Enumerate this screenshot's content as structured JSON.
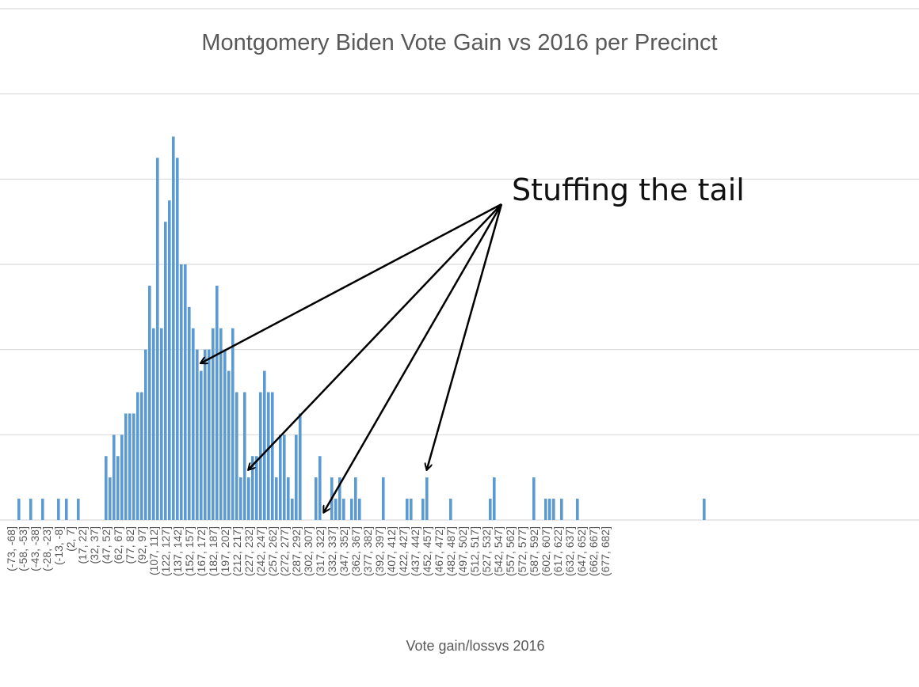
{
  "chart_data": {
    "type": "bar",
    "title": "Montgomery Biden Vote Gain vs 2016 per Precinct",
    "xlabel": "Vote gain/lossvs 2016",
    "ylabel": "",
    "ylim": [
      0,
      24
    ],
    "y_gridlines": [
      0,
      4,
      8,
      12,
      16,
      20,
      24
    ],
    "grid": true,
    "bar_color": "#5b9bd5",
    "bin_width": 5,
    "first_bin_start": -73,
    "tick_labels": [
      "(-73, -68]",
      "(-58, -53]",
      "(-43, -38]",
      "(-28, -23]",
      "(-13, -8]",
      "(2, 7]",
      "(17, 22]",
      "(32, 37]",
      "(47, 52]",
      "(62, 67]",
      "(77, 82]",
      "(92, 97]",
      "(107, 112]",
      "(122, 127]",
      "(137, 142]",
      "(152, 157]",
      "(167, 172]",
      "(182, 187]",
      "(197, 202]",
      "(212, 217]",
      "(227, 232]",
      "(242, 247]",
      "(257, 262]",
      "(272, 277]",
      "(287, 292]",
      "(302, 307]",
      "(317, 322]",
      "(332, 337]",
      "(347, 352]",
      "(362, 367]",
      "(377, 382]",
      "(392, 397]",
      "(407, 412]",
      "(422, 427]",
      "(437, 442]",
      "(452, 457]",
      "(467, 472]",
      "(482, 487]",
      "(497, 502]",
      "(512, 517]",
      "(527, 532]",
      "(542, 547]",
      "(557, 562]",
      "(572, 577]",
      "(587, 592]",
      "(602, 607]",
      "(617, 622]",
      "(632, 637]",
      "(647, 652]",
      "(662, 667]",
      "(677, 682]"
    ],
    "values": [
      0,
      0,
      1,
      0,
      0,
      1,
      0,
      0,
      1,
      0,
      0,
      0,
      1,
      0,
      1,
      0,
      0,
      1,
      0,
      0,
      0,
      0,
      0,
      0,
      3,
      2,
      4,
      3,
      4,
      5,
      5,
      5,
      6,
      6,
      8,
      11,
      9,
      17,
      9,
      14,
      15,
      18,
      17,
      12,
      12,
      10,
      9,
      8,
      7,
      8,
      8,
      9,
      11,
      9,
      8,
      7,
      9,
      6,
      2,
      6,
      2,
      3,
      3,
      6,
      7,
      6,
      6,
      2,
      4,
      4,
      2,
      1,
      4,
      5,
      0,
      0,
      0,
      2,
      3,
      0,
      0,
      2,
      1,
      2,
      1,
      0,
      1,
      2,
      1,
      0,
      0,
      0,
      0,
      0,
      2,
      0,
      0,
      0,
      0,
      0,
      1,
      1,
      0,
      0,
      1,
      2,
      0,
      0,
      0,
      0,
      0,
      1,
      0,
      0,
      0,
      0,
      0,
      0,
      0,
      0,
      0,
      1,
      2,
      0,
      0,
      0,
      0,
      0,
      0,
      0,
      0,
      0,
      2,
      0,
      0,
      1,
      1,
      1,
      0,
      1,
      0,
      0,
      0,
      1,
      0,
      0,
      0,
      0,
      0,
      0,
      0,
      0,
      0,
      0,
      0,
      0,
      0,
      0,
      0,
      0,
      0,
      0,
      0,
      0,
      0,
      0,
      0,
      0,
      0,
      0,
      0,
      0,
      0,
      0,
      0,
      1,
      0,
      0,
      0,
      0,
      0,
      0,
      0,
      0,
      0,
      0,
      0,
      0,
      0,
      0,
      0,
      0,
      0
    ],
    "annotation": {
      "text": "Stuffing the tail",
      "arrow_targets_bin_values": [
        167,
        227,
        322,
        452
      ]
    }
  }
}
